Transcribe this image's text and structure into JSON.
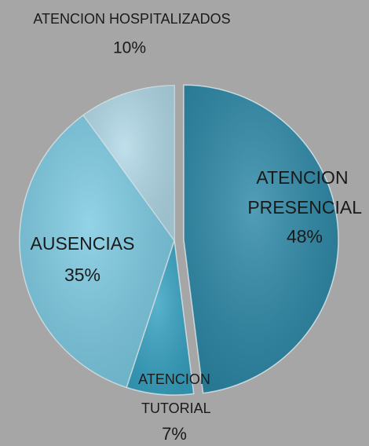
{
  "chart_data": {
    "type": "pie",
    "categories": [
      "ATENCION PRESENCIAL",
      "ATENCION TUTORIAL",
      "AUSENCIAS",
      "ATENCION HOSPITALIZADOS"
    ],
    "values": [
      48,
      7,
      35,
      10
    ],
    "value_labels": [
      "48%",
      "7%",
      "35%",
      "10%"
    ],
    "colors": [
      "#2c88a7",
      "#37a3c3",
      "#7ccae2",
      "#b1d9e7"
    ],
    "start_angle": 0,
    "direction": "clockwise"
  }
}
